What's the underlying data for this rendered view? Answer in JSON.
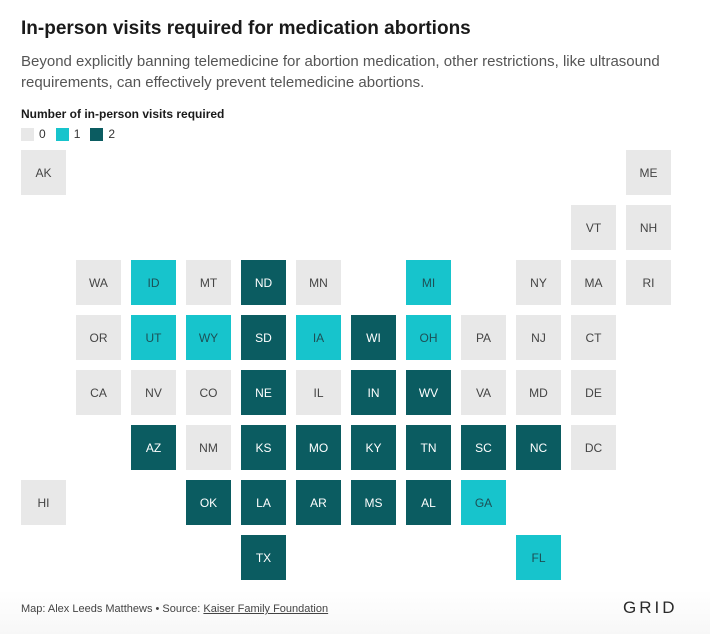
{
  "header": {
    "title": "In-person visits required for medication abortions",
    "subtitle": "Beyond explicitly banning telemedicine for abortion medication, other restrictions, like ultrasound requirements, can effectively prevent telemedicine abortions."
  },
  "legend": {
    "title": "Number of in-person visits required",
    "items": [
      {
        "label": "0",
        "color": "#e8e8e8"
      },
      {
        "label": "1",
        "color": "#17c4cc"
      },
      {
        "label": "2",
        "color": "#0b5c61"
      }
    ]
  },
  "states": [
    {
      "abbr": "AK",
      "visits": 0,
      "row": 0,
      "col": 0
    },
    {
      "abbr": "ME",
      "visits": 0,
      "row": 0,
      "col": 11
    },
    {
      "abbr": "VT",
      "visits": 0,
      "row": 1,
      "col": 10
    },
    {
      "abbr": "NH",
      "visits": 0,
      "row": 1,
      "col": 11
    },
    {
      "abbr": "WA",
      "visits": 0,
      "row": 2,
      "col": 1
    },
    {
      "abbr": "ID",
      "visits": 1,
      "row": 2,
      "col": 2
    },
    {
      "abbr": "MT",
      "visits": 0,
      "row": 2,
      "col": 3
    },
    {
      "abbr": "ND",
      "visits": 2,
      "row": 2,
      "col": 4
    },
    {
      "abbr": "MN",
      "visits": 0,
      "row": 2,
      "col": 5
    },
    {
      "abbr": "MI",
      "visits": 1,
      "row": 2,
      "col": 7
    },
    {
      "abbr": "NY",
      "visits": 0,
      "row": 2,
      "col": 9
    },
    {
      "abbr": "MA",
      "visits": 0,
      "row": 2,
      "col": 10
    },
    {
      "abbr": "RI",
      "visits": 0,
      "row": 2,
      "col": 11
    },
    {
      "abbr": "OR",
      "visits": 0,
      "row": 3,
      "col": 1
    },
    {
      "abbr": "UT",
      "visits": 1,
      "row": 3,
      "col": 2
    },
    {
      "abbr": "WY",
      "visits": 1,
      "row": 3,
      "col": 3
    },
    {
      "abbr": "SD",
      "visits": 2,
      "row": 3,
      "col": 4
    },
    {
      "abbr": "IA",
      "visits": 1,
      "row": 3,
      "col": 5
    },
    {
      "abbr": "WI",
      "visits": 2,
      "row": 3,
      "col": 6
    },
    {
      "abbr": "OH",
      "visits": 1,
      "row": 3,
      "col": 7
    },
    {
      "abbr": "PA",
      "visits": 0,
      "row": 3,
      "col": 8
    },
    {
      "abbr": "NJ",
      "visits": 0,
      "row": 3,
      "col": 9
    },
    {
      "abbr": "CT",
      "visits": 0,
      "row": 3,
      "col": 10
    },
    {
      "abbr": "CA",
      "visits": 0,
      "row": 4,
      "col": 1
    },
    {
      "abbr": "NV",
      "visits": 0,
      "row": 4,
      "col": 2
    },
    {
      "abbr": "CO",
      "visits": 0,
      "row": 4,
      "col": 3
    },
    {
      "abbr": "NE",
      "visits": 2,
      "row": 4,
      "col": 4
    },
    {
      "abbr": "IL",
      "visits": 0,
      "row": 4,
      "col": 5
    },
    {
      "abbr": "IN",
      "visits": 2,
      "row": 4,
      "col": 6
    },
    {
      "abbr": "WV",
      "visits": 2,
      "row": 4,
      "col": 7
    },
    {
      "abbr": "VA",
      "visits": 0,
      "row": 4,
      "col": 8
    },
    {
      "abbr": "MD",
      "visits": 0,
      "row": 4,
      "col": 9
    },
    {
      "abbr": "DE",
      "visits": 0,
      "row": 4,
      "col": 10
    },
    {
      "abbr": "AZ",
      "visits": 2,
      "row": 5,
      "col": 2
    },
    {
      "abbr": "NM",
      "visits": 0,
      "row": 5,
      "col": 3
    },
    {
      "abbr": "KS",
      "visits": 2,
      "row": 5,
      "col": 4
    },
    {
      "abbr": "MO",
      "visits": 2,
      "row": 5,
      "col": 5
    },
    {
      "abbr": "KY",
      "visits": 2,
      "row": 5,
      "col": 6
    },
    {
      "abbr": "TN",
      "visits": 2,
      "row": 5,
      "col": 7
    },
    {
      "abbr": "SC",
      "visits": 2,
      "row": 5,
      "col": 8
    },
    {
      "abbr": "NC",
      "visits": 2,
      "row": 5,
      "col": 9
    },
    {
      "abbr": "DC",
      "visits": 0,
      "row": 5,
      "col": 10
    },
    {
      "abbr": "HI",
      "visits": 0,
      "row": 6,
      "col": 0
    },
    {
      "abbr": "OK",
      "visits": 2,
      "row": 6,
      "col": 3
    },
    {
      "abbr": "LA",
      "visits": 2,
      "row": 6,
      "col": 4
    },
    {
      "abbr": "AR",
      "visits": 2,
      "row": 6,
      "col": 5
    },
    {
      "abbr": "MS",
      "visits": 2,
      "row": 6,
      "col": 6
    },
    {
      "abbr": "AL",
      "visits": 2,
      "row": 6,
      "col": 7
    },
    {
      "abbr": "GA",
      "visits": 1,
      "row": 6,
      "col": 8
    },
    {
      "abbr": "TX",
      "visits": 2,
      "row": 7,
      "col": 4
    },
    {
      "abbr": "FL",
      "visits": 1,
      "row": 7,
      "col": 9
    }
  ],
  "footer": {
    "credit": "Map: Alex Leeds Matthews • Source: ",
    "source_link": "Kaiser Family Foundation",
    "logo": "GRID"
  }
}
